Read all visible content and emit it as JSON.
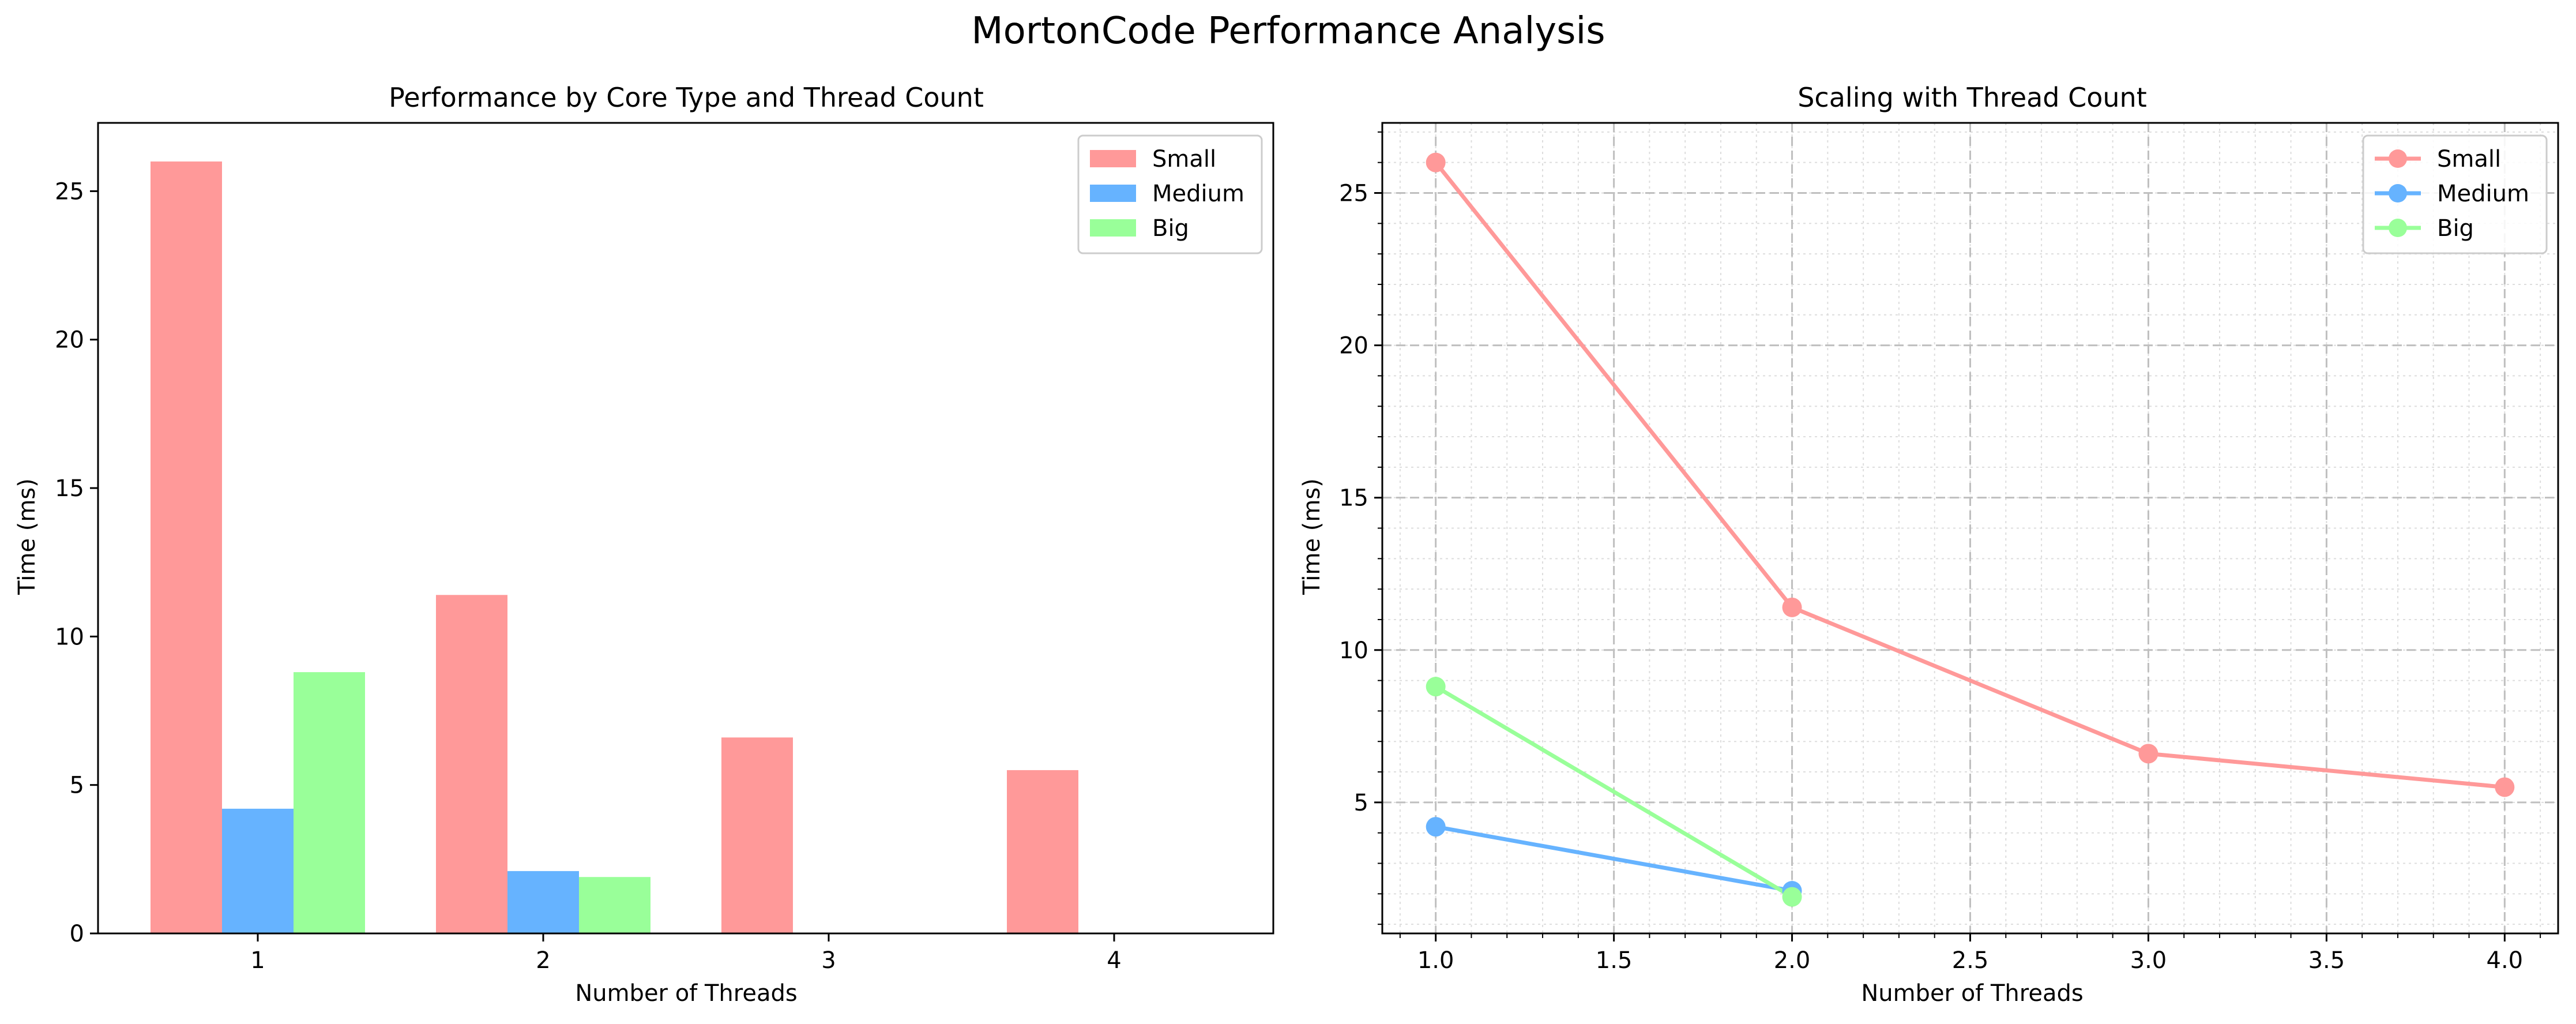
{
  "figure": {
    "suptitle": "MortonCode Performance Analysis"
  },
  "legend_entries": [
    "Small",
    "Medium",
    "Big"
  ],
  "colors": {
    "Small": "#ff9999",
    "Medium": "#66b3ff",
    "Big": "#99ff99"
  },
  "chart_data": [
    {
      "type": "bar",
      "title": "Performance by Core Type and Thread Count",
      "xlabel": "Number of Threads",
      "ylabel": "Time (ms)",
      "categories": [
        "1",
        "2",
        "3",
        "4"
      ],
      "series": [
        {
          "name": "Small",
          "values": [
            26.0,
            11.4,
            6.6,
            5.5
          ]
        },
        {
          "name": "Medium",
          "values": [
            4.2,
            2.1,
            null,
            null
          ]
        },
        {
          "name": "Big",
          "values": [
            8.8,
            1.9,
            null,
            null
          ]
        }
      ],
      "ylim": [
        0,
        27.3
      ],
      "yticks": [
        0,
        5,
        10,
        15,
        20,
        25
      ],
      "yticklabels": [
        "0",
        "5",
        "10",
        "15",
        "20",
        "25"
      ],
      "grid": false,
      "legend": "upper right"
    },
    {
      "type": "line",
      "title": "Scaling with Thread Count",
      "xlabel": "Number of Threads",
      "ylabel": "Time (ms)",
      "series": [
        {
          "name": "Small",
          "x": [
            1,
            2,
            3,
            4
          ],
          "y": [
            26.0,
            11.4,
            6.6,
            5.5
          ]
        },
        {
          "name": "Medium",
          "x": [
            1,
            2
          ],
          "y": [
            4.2,
            2.1
          ]
        },
        {
          "name": "Big",
          "x": [
            1,
            2
          ],
          "y": [
            8.8,
            1.9
          ]
        }
      ],
      "xlim": [
        0.85,
        4.15
      ],
      "ylim": [
        0.7,
        27.3
      ],
      "xticks": [
        1.0,
        1.5,
        2.0,
        2.5,
        3.0,
        3.5,
        4.0
      ],
      "xticklabels": [
        "1.0",
        "1.5",
        "2.0",
        "2.5",
        "3.0",
        "3.5",
        "4.0"
      ],
      "yticks": [
        5,
        10,
        15,
        20,
        25
      ],
      "yticklabels": [
        "5",
        "10",
        "15",
        "20",
        "25"
      ],
      "grid": true,
      "legend": "upper right"
    }
  ]
}
